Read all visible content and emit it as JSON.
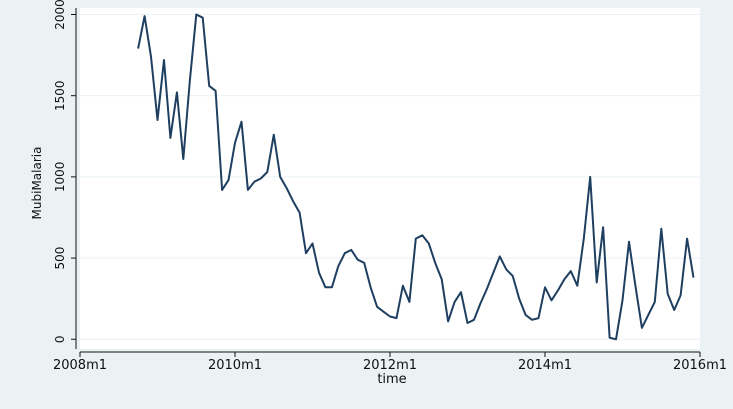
{
  "chart_data": {
    "type": "line",
    "xlabel": "time",
    "ylabel": "MubiMalaria",
    "x_ticks": [
      {
        "label": "2008m1",
        "value": 2008.0
      },
      {
        "label": "2010m1",
        "value": 2010.0
      },
      {
        "label": "2012m1",
        "value": 2012.0
      },
      {
        "label": "2014m1",
        "value": 2014.0
      },
      {
        "label": "2016m1",
        "value": 2016.0
      }
    ],
    "y_ticks": [
      0,
      500,
      1000,
      1500,
      2000
    ],
    "xlim": [
      2008.0,
      2016.0
    ],
    "ylim": [
      -60,
      2040
    ],
    "grid": true,
    "colors": {
      "line": "#1f3f60",
      "plot_bg": "#ffffff",
      "outer_bg": "#eaf2f3",
      "grid": "#eaf2f3"
    },
    "series": [
      {
        "x": [
          "2008m10",
          "2008m11",
          "2008m12",
          "2009m1",
          "2009m2",
          "2009m3",
          "2009m4",
          "2009m5",
          "2009m6",
          "2009m7",
          "2009m8",
          "2009m9",
          "2009m10",
          "2009m11",
          "2009m12",
          "2010m1",
          "2010m2",
          "2010m3",
          "2010m4",
          "2010m5",
          "2010m6",
          "2010m7",
          "2010m8",
          "2010m9",
          "2010m10",
          "2010m11",
          "2010m12",
          "2011m1",
          "2011m2",
          "2011m3",
          "2011m4",
          "2011m5",
          "2011m6",
          "2011m7",
          "2011m8",
          "2011m9",
          "2011m10",
          "2011m11",
          "2011m12",
          "2012m1",
          "2012m2",
          "2012m3",
          "2012m4",
          "2012m5",
          "2012m6",
          "2012m7",
          "2012m8",
          "2012m9",
          "2012m10",
          "2012m11",
          "2012m12",
          "2013m1",
          "2013m2",
          "2013m3",
          "2013m4",
          "2013m5",
          "2013m6",
          "2013m7",
          "2013m8",
          "2013m9",
          "2013m10",
          "2013m11",
          "2013m12",
          "2014m1",
          "2014m2",
          "2014m3",
          "2014m4",
          "2014m5",
          "2014m6",
          "2014m7",
          "2014m8",
          "2014m9",
          "2014m10",
          "2014m11",
          "2014m12",
          "2015m1",
          "2015m2",
          "2015m3",
          "2015m4",
          "2015m5",
          "2015m6",
          "2015m7",
          "2015m8",
          "2015m9",
          "2015m10",
          "2015m11",
          "2015m12"
        ],
        "values": [
          1790,
          1990,
          1740,
          1350,
          1720,
          1240,
          1520,
          1110,
          1590,
          2000,
          1980,
          1560,
          1530,
          920,
          980,
          1210,
          1340,
          920,
          970,
          990,
          1030,
          1260,
          1000,
          930,
          850,
          780,
          530,
          590,
          410,
          320,
          320,
          450,
          530,
          550,
          490,
          470,
          320,
          200,
          170,
          140,
          130,
          330,
          230,
          620,
          640,
          590,
          470,
          370,
          110,
          230,
          290,
          100,
          120,
          220,
          310,
          410,
          510,
          430,
          390,
          250,
          150,
          120,
          130,
          320,
          240,
          300,
          370,
          420,
          330,
          620,
          1000,
          350,
          690,
          10,
          0,
          240,
          600,
          330,
          70,
          150,
          230,
          680,
          280,
          180,
          270,
          620,
          380
        ]
      }
    ]
  }
}
